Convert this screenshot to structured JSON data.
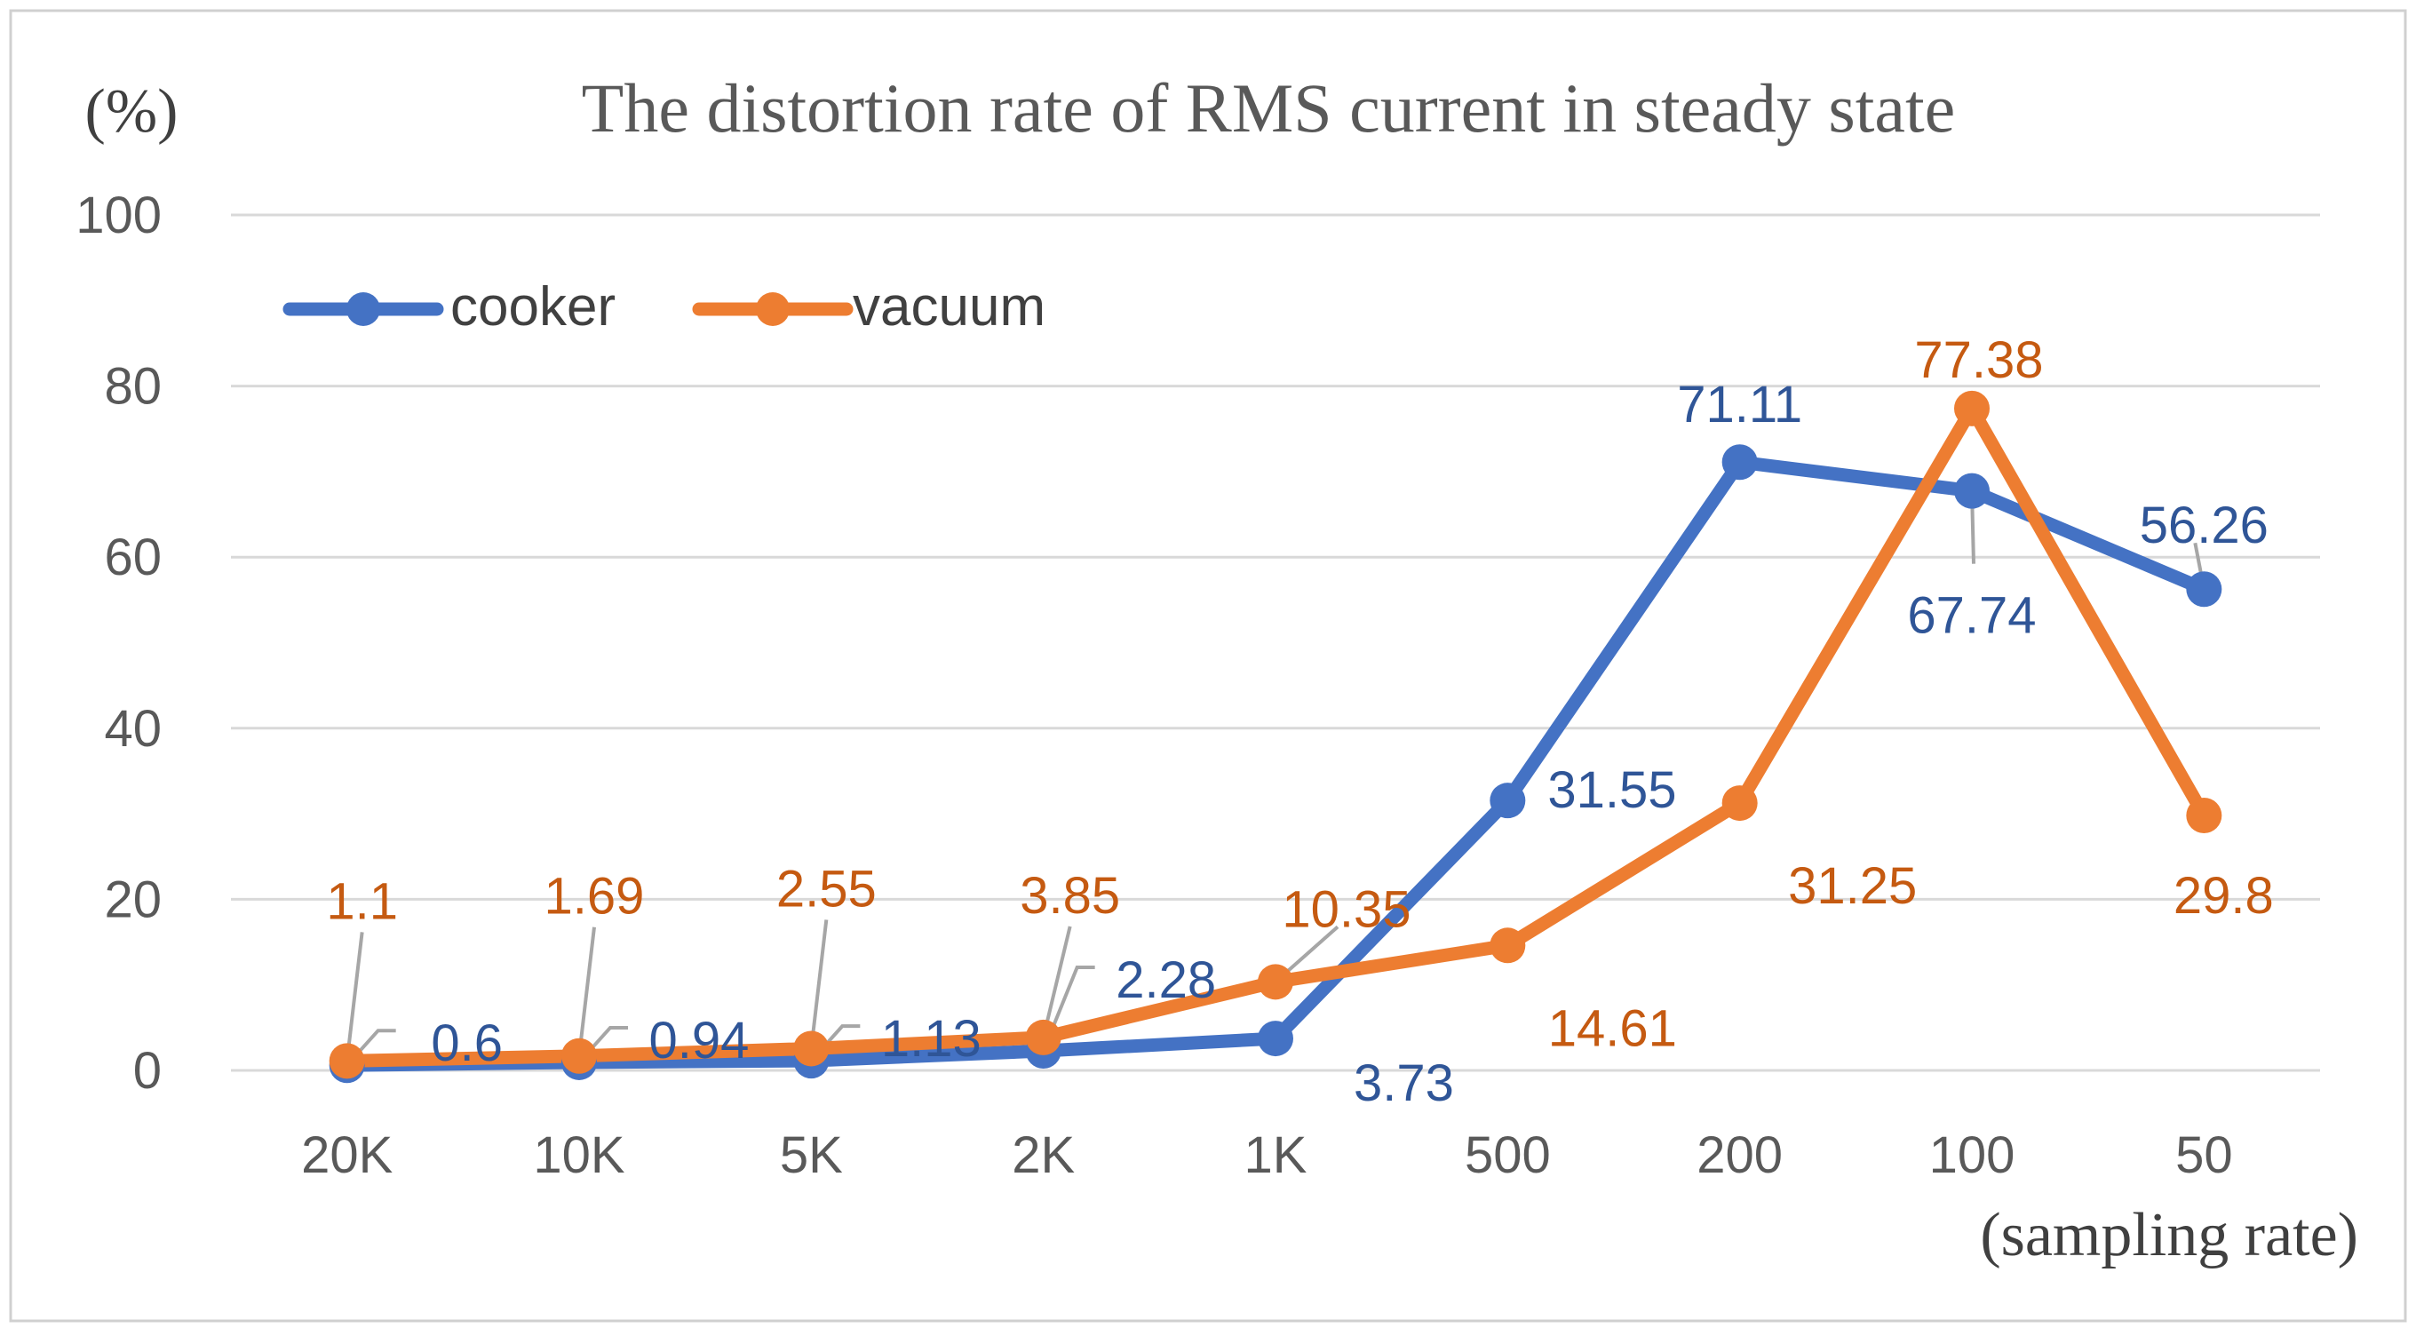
{
  "chart_data": {
    "type": "line",
    "title": "The distortion rate of RMS current in steady state",
    "ylabel": "(%)",
    "xlabel": "(sampling rate)",
    "ylim": [
      0,
      100
    ],
    "yticks": [
      0,
      20,
      40,
      60,
      80,
      100
    ],
    "grid": true,
    "legend_position": "top-left",
    "categories": [
      "20K",
      "10K",
      "5K",
      "2K",
      "1K",
      "500",
      "200",
      "100",
      "50"
    ],
    "series": [
      {
        "name": "cooker",
        "color": "#4472C4",
        "label_color": "#2F5597",
        "values": [
          0.6,
          0.94,
          1.13,
          2.28,
          3.73,
          31.55,
          71.11,
          67.74,
          56.26
        ],
        "labels": [
          "0.6",
          "0.94",
          "1.13",
          "2.28",
          "3.73",
          "31.55",
          "71.11",
          "67.74",
          "56.26"
        ]
      },
      {
        "name": "vacuum",
        "color": "#ED7D31",
        "label_color": "#C55A11",
        "values": [
          1.1,
          1.69,
          2.55,
          3.85,
          10.35,
          14.61,
          31.25,
          77.38,
          29.8
        ],
        "labels": [
          "1.1",
          "1.69",
          "2.55",
          "3.85",
          "10.35",
          "14.61",
          "31.25",
          "77.38",
          "29.8"
        ]
      }
    ]
  }
}
